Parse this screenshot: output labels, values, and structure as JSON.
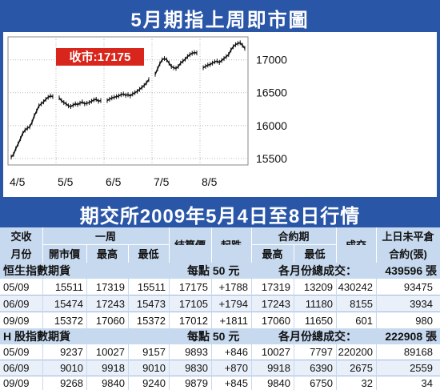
{
  "chart_panel": {
    "title": "5月期指上周即市圖",
    "callout": "收市:17175"
  },
  "chart_data": {
    "type": "line",
    "title": "5月期指上周即市圖",
    "x_tick_labels": [
      "4/5",
      "5/5",
      "6/5",
      "7/5",
      "8/5"
    ],
    "y_tick_labels": [
      "17000",
      "16500",
      "16000",
      "15500"
    ],
    "y_ticks": [
      17000,
      16500,
      16000,
      15500
    ],
    "ylim": [
      15400,
      17350
    ],
    "grid": true,
    "series": [
      {
        "days": [
          {
            "label": "4/5",
            "values": [
              15520,
              15560,
              15650,
              15720,
              15800,
              15880,
              15930,
              15960,
              15980,
              16050,
              16150,
              16220,
              16300,
              16330,
              16360,
              16400,
              16430,
              16450,
              16440
            ]
          },
          {
            "label": "5/5",
            "values": [
              16420,
              16380,
              16350,
              16330,
              16300,
              16290,
              16310,
              16330,
              16320,
              16340,
              16360,
              16330,
              16340,
              16350,
              16370,
              16390,
              16400,
              16370,
              16380
            ]
          },
          {
            "label": "6/5",
            "values": [
              16380,
              16400,
              16420,
              16430,
              16440,
              16450,
              16470,
              16480,
              16460,
              16470,
              16450,
              16480,
              16500,
              16520,
              16550,
              16580,
              16610,
              16650,
              16700
            ]
          },
          {
            "label": "7/5",
            "values": [
              16780,
              16860,
              16940,
              17000,
              17020,
              17000,
              16950,
              16900,
              16880,
              16870,
              16900,
              16950,
              16980,
              17010,
              17050,
              17080,
              17100,
              17110,
              17105
            ]
          },
          {
            "label": "8/5",
            "values": [
              16880,
              16900,
              16920,
              16930,
              16950,
              16970,
              16980,
              16960,
              16990,
              17020,
              17050,
              17080,
              17150,
              17200,
              17230,
              17250,
              17260,
              17220,
              17175
            ]
          }
        ]
      }
    ],
    "callout": {
      "text": "收市:17175",
      "value": 17175
    }
  },
  "table": {
    "title": "期交所2009年5月4日至8日行情",
    "header": {
      "month_top": "交收",
      "month_bottom": "月份",
      "week": "一周",
      "open": "開市價",
      "high": "最高",
      "low": "最低",
      "settle": "結算價",
      "change": "起跌",
      "contract_period": "合約期",
      "cp_high": "最高",
      "cp_low": "最低",
      "volume": "成交",
      "oi_top": "上日未平倉",
      "oi_bottom": "合約(張)"
    },
    "sections": [
      {
        "name": "恒生指數期貨",
        "point_value": "每點 50 元",
        "total_label": "各月份總成交：",
        "total_value": "439596 張",
        "rows": [
          {
            "month": "05/09",
            "open": "15511",
            "high": "17319",
            "low": "15511",
            "settle": "17175",
            "change": "+1788",
            "cp_high": "17319",
            "cp_low": "13209",
            "volume": "430242",
            "oi": "93475"
          },
          {
            "month": "06/09",
            "open": "15474",
            "high": "17243",
            "low": "15473",
            "settle": "17105",
            "change": "+1794",
            "cp_high": "17243",
            "cp_low": "11180",
            "volume": "8155",
            "oi": "3934"
          },
          {
            "month": "09/09",
            "open": "15372",
            "high": "17060",
            "low": "15372",
            "settle": "17012",
            "change": "+1811",
            "cp_high": "17060",
            "cp_low": "11650",
            "volume": "601",
            "oi": "980"
          }
        ]
      },
      {
        "name": "H 股指數期貨",
        "point_value": "每點 50 元",
        "total_label": "各月份總成交：",
        "total_value": "222908 張",
        "rows": [
          {
            "month": "05/09",
            "open": "9237",
            "high": "10027",
            "low": "9157",
            "settle": "9893",
            "change": "+846",
            "cp_high": "10027",
            "cp_low": "7797",
            "volume": "220200",
            "oi": "89168"
          },
          {
            "month": "06/09",
            "open": "9010",
            "high": "9918",
            "low": "9010",
            "settle": "9830",
            "change": "+870",
            "cp_high": "9918",
            "cp_low": "6390",
            "volume": "2675",
            "oi": "2559"
          },
          {
            "month": "09/09",
            "open": "9268",
            "high": "9840",
            "low": "9240",
            "settle": "9879",
            "change": "+845",
            "cp_high": "9840",
            "cp_low": "6750",
            "volume": "32",
            "oi": "34"
          }
        ]
      }
    ]
  },
  "colors": {
    "panel_blue": "#2a56a8",
    "header_light": "#c7d9ef",
    "row_alt": "#e9f0f9",
    "callout_red": "#d8261c",
    "line": "#111111",
    "grid": "#b8b8b8"
  }
}
